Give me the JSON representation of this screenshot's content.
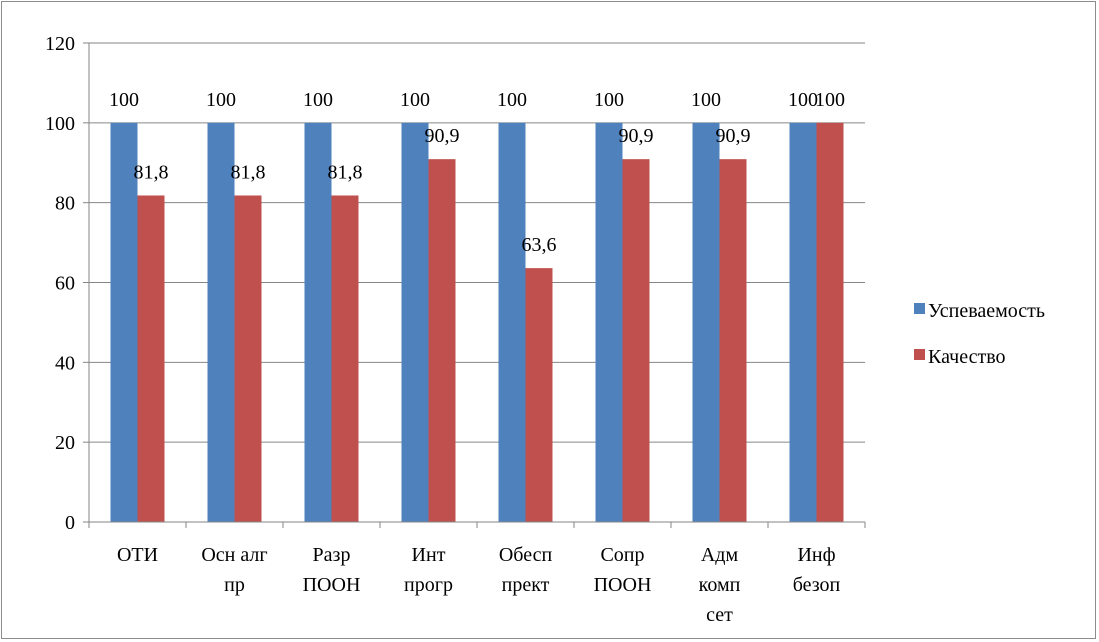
{
  "chart_data": {
    "type": "bar",
    "categories": [
      [
        "ОТИ"
      ],
      [
        "Осн алг",
        "пр"
      ],
      [
        "Разр",
        "ПООН"
      ],
      [
        "Инт",
        "прогр"
      ],
      [
        "Обесп",
        "прект"
      ],
      [
        "Сопр",
        "ПООН"
      ],
      [
        "Адм",
        "комп",
        "сет"
      ],
      [
        "Инф",
        "безоп"
      ]
    ],
    "series": [
      {
        "name": "Успеваемость",
        "color": "#4f81bd",
        "values": [
          100,
          100,
          100,
          100,
          100,
          100,
          100,
          100
        ],
        "labels": [
          "100",
          "100",
          "100",
          "100",
          "100",
          "100",
          "100",
          "100"
        ]
      },
      {
        "name": "Качество",
        "color": "#c0504d",
        "values": [
          81.8,
          81.8,
          81.8,
          90.9,
          63.6,
          90.9,
          90.9,
          100
        ],
        "labels": [
          "81,8",
          "81,8",
          "81,8",
          "90,9",
          "63,6",
          "90,9",
          "90,9",
          "100"
        ]
      }
    ],
    "yticks": [
      0,
      20,
      40,
      60,
      80,
      100,
      120
    ],
    "ylim": [
      0,
      120
    ],
    "grid": true,
    "legend": "right"
  }
}
